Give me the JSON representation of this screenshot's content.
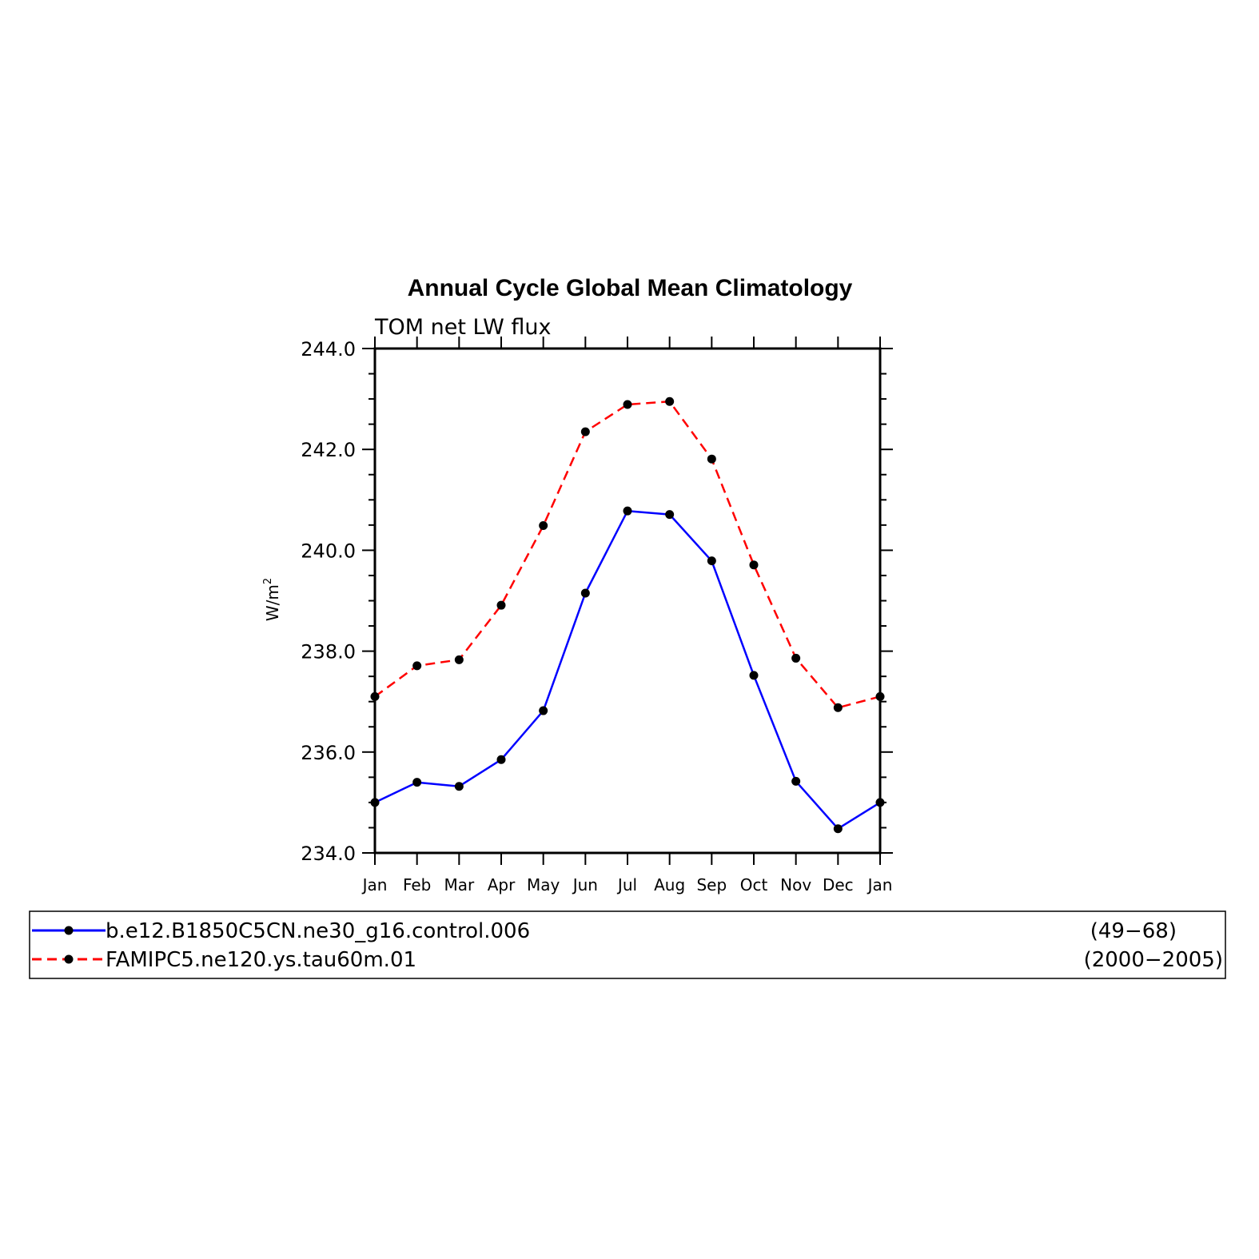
{
  "chart_data": {
    "type": "line",
    "title": "Annual Cycle Global Mean Climatology",
    "subtitle": "TOM net LW flux",
    "ylabel": "W/m",
    "ylabel_superscript": "2",
    "ylim": [
      234.0,
      244.0
    ],
    "y_ticks": [
      "234.0",
      "236.0",
      "238.0",
      "240.0",
      "242.0",
      "244.0"
    ],
    "categories": [
      "Jan",
      "Feb",
      "Mar",
      "Apr",
      "May",
      "Jun",
      "Jul",
      "Aug",
      "Sep",
      "Oct",
      "Nov",
      "Dec",
      "Jan"
    ],
    "grid": false,
    "series": [
      {
        "name": "b.e12.B1850C5CN.ne30_g16.control.006",
        "period": "(49−68)",
        "color": "#0000ff",
        "dashed": false,
        "values": [
          235.0,
          235.4,
          235.32,
          235.85,
          236.82,
          239.15,
          240.78,
          240.71,
          239.79,
          237.52,
          235.42,
          234.48,
          235.0
        ]
      },
      {
        "name": "FAMIPC5.ne120.ys.tau60m.01",
        "period": "(2000−2005)",
        "color": "#ff0000",
        "dashed": true,
        "values": [
          237.1,
          237.71,
          237.83,
          238.91,
          240.49,
          242.35,
          242.89,
          242.95,
          241.81,
          239.71,
          237.86,
          236.88,
          237.1
        ]
      }
    ]
  }
}
